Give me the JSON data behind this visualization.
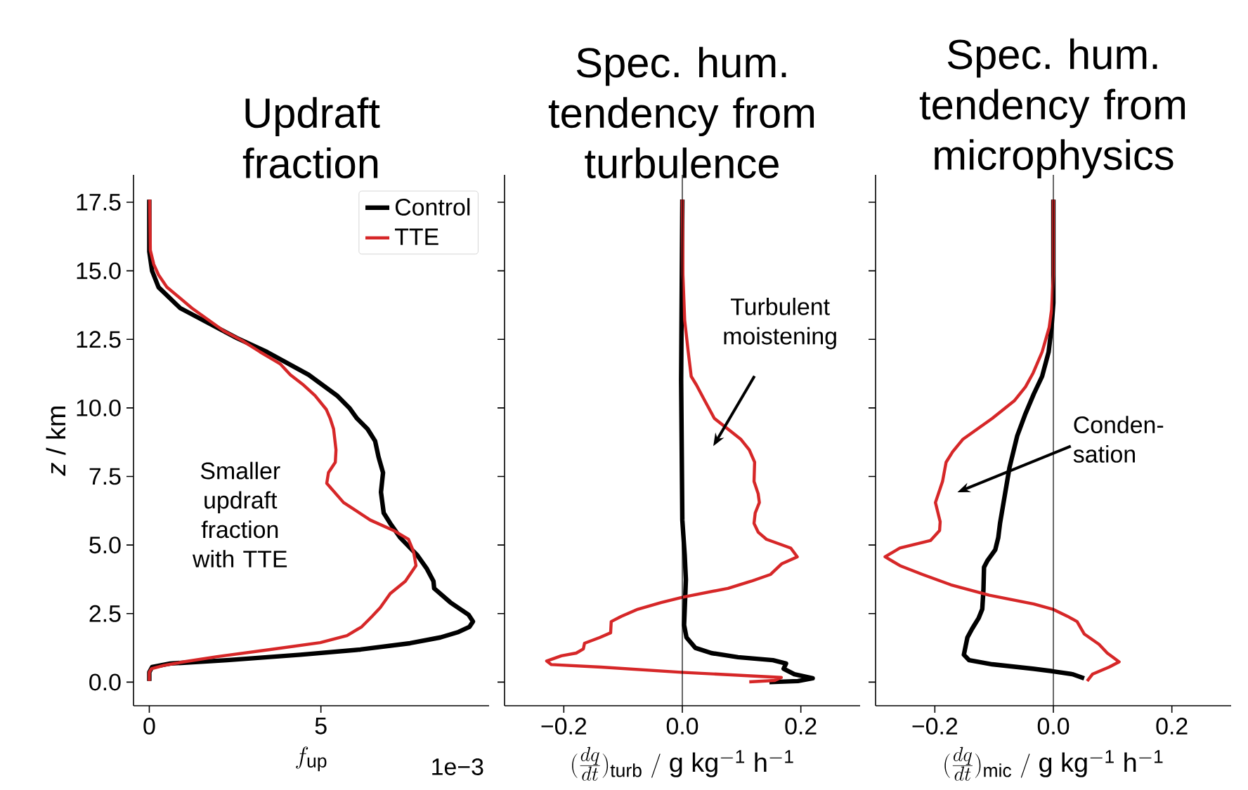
{
  "chart_data": [
    {
      "type": "line",
      "title": "Updraft fraction",
      "xlabel": "f_{\\mathrm{up}}",
      "ylabel": "*z* / km",
      "xlim": [
        -0.46,
        9.9
      ],
      "ylim": [
        -0.86,
        18.5
      ],
      "xticks": [
        0,
        5
      ],
      "yticks": [
        {
          "value": 0,
          "label": "0.0"
        },
        {
          "value": 2.5,
          "label": "2.5"
        },
        {
          "value": 5,
          "label": "5.0"
        },
        {
          "value": 7.5,
          "label": "7.5"
        },
        {
          "value": 10,
          "label": "10.0"
        },
        {
          "value": 12.5,
          "label": "12.5"
        },
        {
          "value": 15,
          "label": "15.0"
        },
        {
          "value": 17.5,
          "label": "17.5"
        }
      ],
      "legend": "top right",
      "line_style": "solid",
      "annotations": [
        "Smaller updraft fraction with TTE",
        "1e−3"
      ],
      "series": [
        {
          "name": "Control",
          "color": "#000000",
          "x": [
            0,
            0,
            0.08,
            0.27,
            0.9,
            2.55,
            3.43,
            4.64,
            5.47,
            5.83,
            6.05,
            6.36,
            6.58,
            6.68,
            6.81,
            6.75,
            6.83,
            7.02,
            7.31,
            7.8,
            8.09,
            8.28,
            8.3,
            8.77,
            9.3,
            9.43,
            9.33,
            9.01,
            8.48,
            7.6,
            6.15,
            4.4,
            2.26,
            0.61,
            0.08,
            0,
            0
          ],
          "values": [
            17.6,
            15.7,
            15.0,
            14.4,
            13.64,
            12.55,
            12.04,
            11.21,
            10.45,
            10.0,
            9.62,
            9.23,
            8.79,
            8.21,
            7.64,
            6.93,
            6.17,
            5.79,
            5.27,
            4.64,
            4.13,
            3.68,
            3.42,
            2.91,
            2.46,
            2.21,
            2.02,
            1.83,
            1.63,
            1.42,
            1.19,
            1.0,
            0.8,
            0.68,
            0.55,
            0.36,
            0.04
          ]
        },
        {
          "name": "TTE",
          "color": "#d62728",
          "x": [
            0.01,
            0.03,
            0.13,
            0.27,
            0.51,
            1.24,
            2.17,
            2.7,
            3.23,
            3.82,
            4.11,
            4.5,
            4.83,
            5.16,
            5.27,
            5.37,
            5.44,
            5.42,
            5.22,
            5.17,
            5.66,
            6.44,
            7.12,
            7.55,
            7.7,
            7.77,
            7.46,
            7.02,
            6.73,
            6.49,
            6.19,
            5.76,
            4.98,
            3.52,
            1.97,
            1.0,
            0.42,
            0.06,
            0,
            0
          ],
          "values": [
            17.6,
            15.75,
            15.24,
            14.85,
            14.41,
            13.64,
            12.81,
            12.46,
            12.04,
            11.6,
            11.21,
            10.83,
            10.45,
            9.94,
            9.62,
            9.23,
            8.47,
            8.02,
            7.64,
            7.25,
            6.55,
            5.91,
            5.53,
            5.21,
            4.76,
            4.25,
            3.68,
            3.23,
            2.72,
            2.4,
            2.02,
            1.7,
            1.44,
            1.19,
            0.93,
            0.74,
            0.61,
            0.49,
            0.36,
            0.04
          ]
        }
      ]
    },
    {
      "type": "line",
      "title": "Spec. hum. tendency from turbulence",
      "xlabel": "(\\frac{dq}{dt})_{\\mathrm{turb}}\\ /\\ \\mathrm{g\\ kg^{-1}\\ h^{-1}}",
      "xlim": [
        -0.3,
        0.3
      ],
      "ylim": [
        -0.86,
        18.5
      ],
      "xticks": [
        {
          "value": -0.2,
          "label": "−0.2"
        },
        {
          "value": 0,
          "label": "0.0"
        },
        {
          "value": 0.2,
          "label": "0.2"
        }
      ],
      "yticks": [
        {
          "value": 0,
          "label": null
        },
        {
          "value": 2.5,
          "label": null
        },
        {
          "value": 5,
          "label": null
        },
        {
          "value": 7.5,
          "label": null
        },
        {
          "value": 10,
          "label": null
        },
        {
          "value": 12.5,
          "label": null
        },
        {
          "value": 15,
          "label": null
        },
        {
          "value": 17.5,
          "label": null
        }
      ],
      "tick_labels": "x",
      "line_style": "solid",
      "ref_lines": [
        {
          "axis": "x",
          "value": 0,
          "color": "#000000"
        }
      ],
      "annotations": [
        "Turbulent moistening"
      ],
      "series": [
        {
          "color": "#000000",
          "x": [
            0,
            -0.002,
            0,
            0.004,
            0.006,
            0.003,
            0.007,
            0.022,
            0.049,
            0.094,
            0.153,
            0.175,
            0.171,
            0.189,
            0.22,
            0.195,
            0.147
          ],
          "values": [
            17.6,
            11.02,
            5.91,
            4.64,
            3.74,
            2.08,
            1.63,
            1.25,
            1.06,
            0.91,
            0.8,
            0.68,
            0.49,
            0.29,
            0.14,
            0.04,
            0.0
          ]
        },
        {
          "color": "#d62728",
          "x": [
            0,
            0.001,
            0.004,
            0.01,
            0.015,
            0.024,
            0.038,
            0.054,
            0.077,
            0.099,
            0.113,
            0.122,
            0.121,
            0.128,
            0.13,
            0.123,
            0.121,
            0.128,
            0.142,
            0.183,
            0.194,
            0.168,
            0.149,
            0.116,
            0.077,
            0.001,
            -0.035,
            -0.075,
            -0.103,
            -0.12,
            -0.121,
            -0.139,
            -0.165,
            -0.167,
            -0.179,
            -0.204,
            -0.229,
            -0.221,
            -0.137,
            -0.002,
            0.167,
            0.156,
            0.113
          ],
          "values": [
            17.6,
            14.85,
            13.19,
            12.04,
            11.15,
            10.83,
            10.26,
            9.62,
            9.23,
            8.85,
            8.47,
            8.02,
            7.32,
            6.87,
            6.55,
            6.17,
            5.79,
            5.47,
            5.21,
            4.89,
            4.57,
            4.32,
            3.93,
            3.68,
            3.42,
            3.1,
            2.91,
            2.66,
            2.4,
            2.21,
            1.8,
            1.63,
            1.42,
            1.21,
            1.06,
            0.96,
            0.77,
            0.64,
            0.55,
            0.36,
            0.17,
            0.06,
            0.01
          ]
        }
      ]
    },
    {
      "type": "line",
      "title": "Spec. hum. tendency from microphysics",
      "xlabel": "(\\frac{dq}{dt})_{\\mathrm{mic}}\\ /\\ \\mathrm{g\\ kg^{-1}\\ h^{-1}}",
      "xlim": [
        -0.3,
        0.3
      ],
      "ylim": [
        -0.86,
        18.5
      ],
      "xticks": [
        {
          "value": -0.2,
          "label": "−0.2"
        },
        {
          "value": 0,
          "label": "0.0"
        },
        {
          "value": 0.2,
          "label": "0.2"
        }
      ],
      "yticks": [
        {
          "value": 0,
          "label": null
        },
        {
          "value": 2.5,
          "label": null
        },
        {
          "value": 5,
          "label": null
        },
        {
          "value": 7.5,
          "label": null
        },
        {
          "value": 10,
          "label": null
        },
        {
          "value": 12.5,
          "label": null
        },
        {
          "value": 15,
          "label": null
        },
        {
          "value": 17.5,
          "label": null
        }
      ],
      "tick_labels": "x",
      "line_style": "solid",
      "ref_lines": [
        {
          "axis": "x",
          "value": 0,
          "color": "#000000"
        }
      ],
      "annotations": [
        "Conden-sation"
      ],
      "series": [
        {
          "color": "#000000",
          "x": [
            0,
            0,
            -0.003,
            -0.008,
            -0.019,
            -0.033,
            -0.048,
            -0.061,
            -0.074,
            -0.083,
            -0.09,
            -0.093,
            -0.098,
            -0.111,
            -0.117,
            -0.118,
            -0.12,
            -0.126,
            -0.137,
            -0.145,
            -0.148,
            -0.151,
            -0.142,
            -0.103,
            -0.035,
            -0.002,
            0.032,
            0.052
          ],
          "values": [
            17.6,
            13.83,
            12.94,
            12.04,
            11.15,
            10.51,
            9.74,
            8.98,
            7.83,
            6.68,
            5.79,
            5.27,
            4.83,
            4.44,
            4.19,
            3.36,
            2.66,
            2.34,
            1.95,
            1.63,
            1.32,
            1.0,
            0.8,
            0.65,
            0.49,
            0.4,
            0.29,
            0.14
          ]
        },
        {
          "color": "#d62728",
          "x": [
            0,
            0,
            -0.003,
            -0.007,
            -0.019,
            -0.034,
            -0.047,
            -0.066,
            -0.103,
            -0.153,
            -0.17,
            -0.181,
            -0.187,
            -0.199,
            -0.191,
            -0.192,
            -0.207,
            -0.259,
            -0.284,
            -0.259,
            -0.221,
            -0.173,
            -0.108,
            -0.033,
            -0.001,
            0.024,
            0.04,
            0.052,
            0.077,
            0.091,
            0.111,
            0.094,
            0.066,
            0.057
          ],
          "values": [
            17.6,
            14.85,
            13.58,
            12.94,
            12.04,
            11.28,
            10.77,
            10.26,
            9.62,
            8.85,
            8.4,
            8.02,
            7.32,
            6.55,
            5.85,
            5.53,
            5.17,
            4.89,
            4.57,
            4.25,
            3.93,
            3.55,
            3.17,
            2.85,
            2.66,
            2.4,
            2.21,
            1.76,
            1.38,
            1.06,
            0.74,
            0.55,
            0.29,
            0.04
          ]
        }
      ]
    }
  ]
}
